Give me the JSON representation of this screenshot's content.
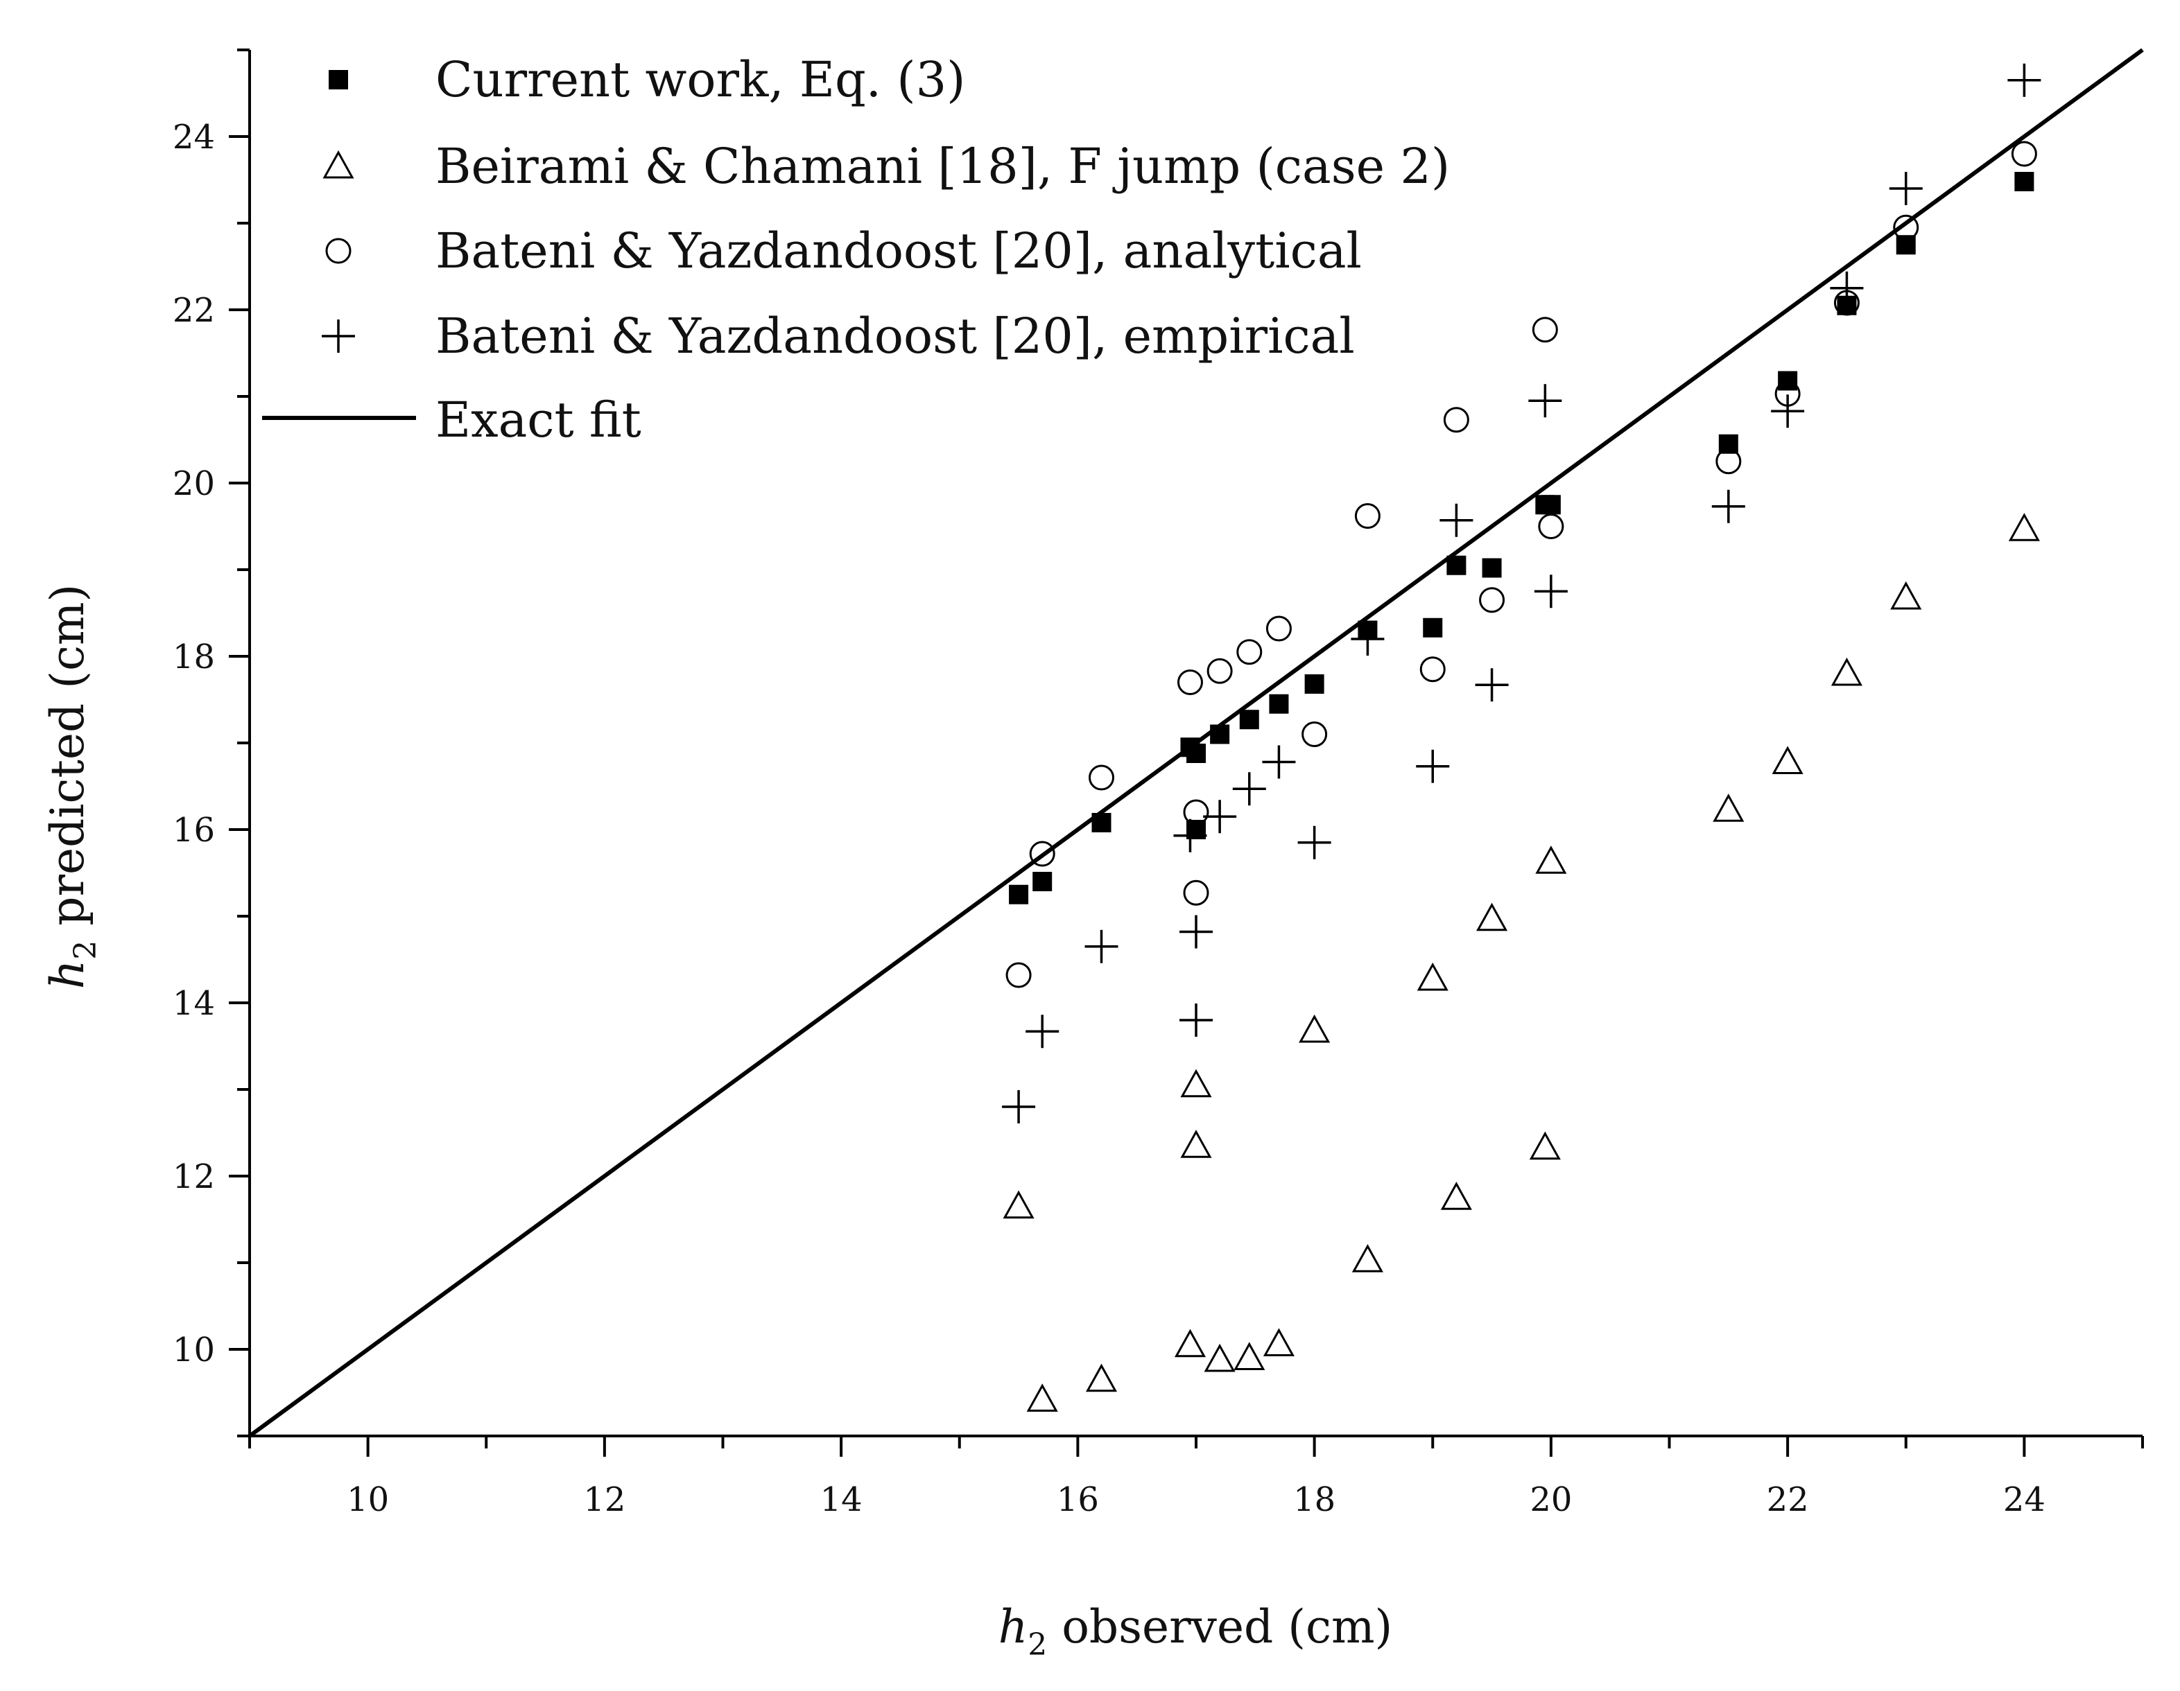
{
  "chart_data": {
    "type": "scatter",
    "xlabel": {
      "var": "h",
      "sub": "2",
      "rest": " observed (cm)"
    },
    "ylabel": {
      "var": "h",
      "sub": "2",
      "rest": " predicted (cm)"
    },
    "xlim": [
      9,
      25
    ],
    "ylim": [
      9,
      25
    ],
    "xticks": [
      10,
      12,
      14,
      16,
      18,
      20,
      22,
      24
    ],
    "yticks": [
      10,
      12,
      14,
      16,
      18,
      20,
      22,
      24
    ],
    "minor_step": 1,
    "legend_position": "top-left",
    "reference_line": {
      "name": "Exact fit",
      "from": [
        9,
        9
      ],
      "to": [
        25,
        25
      ]
    },
    "series": [
      {
        "name": "Current work, Eq. (3)",
        "marker": "filled-square",
        "x": [
          15.5,
          15.7,
          16.2,
          16.95,
          17.0,
          17.0,
          17.2,
          17.45,
          17.7,
          18.0,
          18.45,
          19.0,
          19.2,
          19.5,
          19.95,
          20.0,
          21.5,
          22.0,
          22.5,
          23.0,
          24.0
        ],
        "y": [
          15.25,
          15.4,
          16.08,
          16.95,
          16.88,
          16.0,
          17.1,
          17.27,
          17.45,
          17.68,
          18.3,
          18.33,
          19.05,
          19.02,
          19.75,
          19.75,
          20.45,
          21.18,
          22.05,
          22.75,
          23.48
        ]
      },
      {
        "name": "Beirami & Chamani [18], F jump (case 2)",
        "marker": "open-triangle",
        "x": [
          15.5,
          15.7,
          16.2,
          16.95,
          17.0,
          17.0,
          17.2,
          17.45,
          17.7,
          18.0,
          18.45,
          19.0,
          19.2,
          19.5,
          19.95,
          20.0,
          21.5,
          22.0,
          22.5,
          23.0,
          24.0
        ],
        "y": [
          11.65,
          9.42,
          9.65,
          10.05,
          13.05,
          12.35,
          9.88,
          9.9,
          10.06,
          13.68,
          11.03,
          14.28,
          11.75,
          14.97,
          12.33,
          15.63,
          16.23,
          16.78,
          17.8,
          18.68,
          19.47
        ]
      },
      {
        "name": "Bateni & Yazdandoost [20], analytical",
        "marker": "open-circle",
        "x": [
          15.5,
          15.7,
          16.2,
          16.95,
          17.0,
          17.0,
          17.2,
          17.45,
          17.7,
          18.0,
          18.45,
          19.0,
          19.2,
          19.5,
          19.95,
          20.0,
          21.5,
          22.0,
          22.5,
          23.0,
          24.0
        ],
        "y": [
          14.32,
          15.72,
          16.6,
          17.7,
          16.2,
          15.27,
          17.83,
          18.05,
          18.32,
          17.1,
          19.62,
          17.85,
          20.73,
          18.65,
          21.77,
          19.5,
          20.25,
          21.03,
          22.08,
          22.95,
          23.8
        ]
      },
      {
        "name": "Bateni & Yazdandoost [20], empirical",
        "marker": "plus",
        "x": [
          15.5,
          15.7,
          16.2,
          16.95,
          17.0,
          17.0,
          17.2,
          17.45,
          17.7,
          18.0,
          18.45,
          19.0,
          19.2,
          19.5,
          19.95,
          20.0,
          21.5,
          22.0,
          22.5,
          23.0,
          24.0
        ],
        "y": [
          12.8,
          13.67,
          14.65,
          15.93,
          14.82,
          13.8,
          16.15,
          16.47,
          16.78,
          15.85,
          18.2,
          16.73,
          19.57,
          17.67,
          20.95,
          18.75,
          19.73,
          20.83,
          22.25,
          23.4,
          24.65
        ]
      }
    ]
  }
}
